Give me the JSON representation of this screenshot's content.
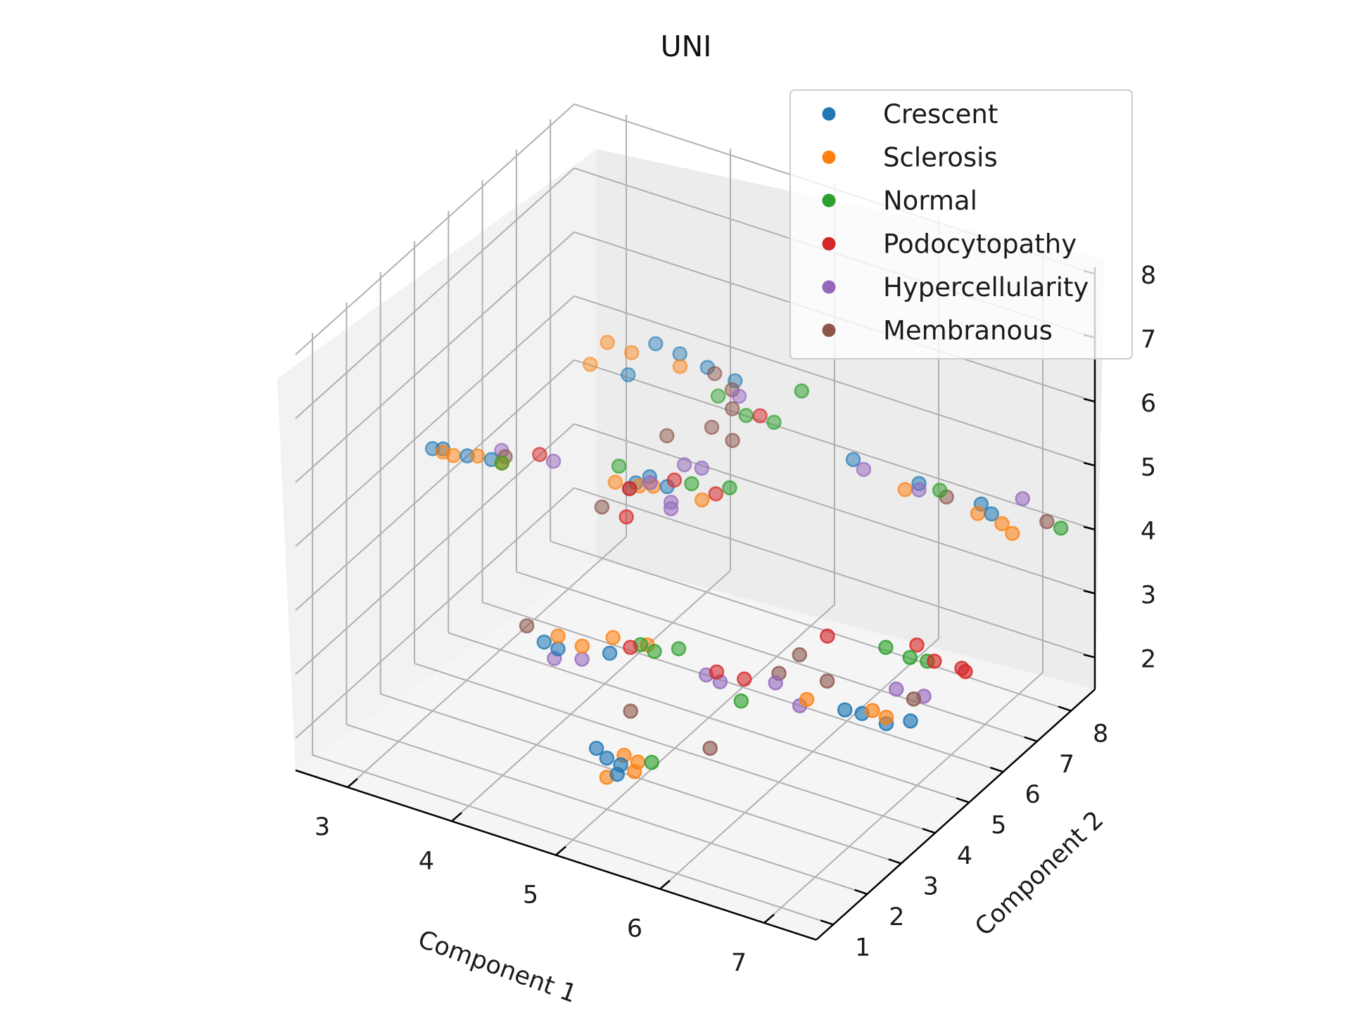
{
  "chart_data": {
    "type": "scatter",
    "projection": "3d",
    "title": "UNI",
    "xlabel": "Component 1",
    "ylabel": "Component 2",
    "zlabel": "",
    "xlim": [
      2.5,
      7.5
    ],
    "ylim": [
      0.5,
      8.7
    ],
    "zlim": [
      1.5,
      8.1
    ],
    "xticks": [
      "3",
      "4",
      "5",
      "6",
      "7"
    ],
    "yticks": [
      "1",
      "2",
      "3",
      "4",
      "5",
      "6",
      "7",
      "8"
    ],
    "zticks": [
      "2",
      "3",
      "4",
      "5",
      "6",
      "7",
      "8"
    ],
    "grid": true,
    "legend_position": "top-right",
    "series": [
      {
        "name": "Crescent",
        "color": "#1f77b4",
        "points": [
          [
            3.0,
            3.0,
            5.6
          ],
          [
            3.1,
            3.0,
            5.65
          ],
          [
            3.3,
            3.1,
            5.6
          ],
          [
            3.5,
            3.2,
            5.6
          ],
          [
            4.0,
            6.5,
            6.1
          ],
          [
            4.2,
            6.6,
            6.0
          ],
          [
            4.4,
            6.8,
            5.8
          ],
          [
            4.6,
            7.0,
            5.6
          ],
          [
            3.9,
            6.0,
            5.8
          ],
          [
            4.3,
            5.0,
            4.8
          ],
          [
            4.4,
            5.1,
            4.9
          ],
          [
            4.6,
            5.0,
            4.9
          ],
          [
            5.8,
            6.8,
            5.1
          ],
          [
            6.3,
            7.2,
            4.8
          ],
          [
            6.8,
            7.5,
            4.6
          ],
          [
            6.9,
            7.5,
            4.5
          ],
          [
            4.3,
            2.3,
            3.6
          ],
          [
            4.4,
            2.4,
            3.5
          ],
          [
            4.8,
            2.7,
            3.5
          ],
          [
            4.9,
            2.0,
            2.4
          ],
          [
            5.0,
            2.0,
            2.3
          ],
          [
            5.1,
            2.1,
            2.2
          ],
          [
            5.1,
            2.0,
            2.1
          ],
          [
            6.6,
            4.1,
            2.9
          ],
          [
            6.7,
            4.3,
            2.8
          ],
          [
            6.9,
            4.4,
            2.7
          ],
          [
            7.1,
            4.5,
            2.8
          ]
        ]
      },
      {
        "name": "Sclerosis",
        "color": "#ff7f0e",
        "points": [
          [
            3.1,
            3.0,
            5.6
          ],
          [
            3.2,
            3.0,
            5.6
          ],
          [
            3.4,
            3.1,
            5.65
          ],
          [
            3.6,
            3.2,
            5.6
          ],
          [
            3.7,
            6.0,
            6.2
          ],
          [
            3.9,
            6.1,
            6.1
          ],
          [
            4.3,
            6.3,
            6.0
          ],
          [
            3.6,
            5.8,
            5.9
          ],
          [
            4.2,
            4.7,
            4.9
          ],
          [
            4.4,
            4.8,
            4.9
          ],
          [
            4.5,
            4.9,
            4.9
          ],
          [
            5.0,
            4.8,
            5.0
          ],
          [
            6.2,
            7.1,
            4.7
          ],
          [
            6.8,
            7.4,
            4.5
          ],
          [
            7.0,
            7.5,
            4.4
          ],
          [
            7.1,
            7.5,
            4.3
          ],
          [
            4.4,
            2.4,
            3.7
          ],
          [
            4.6,
            2.5,
            3.6
          ],
          [
            4.7,
            3.1,
            3.5
          ],
          [
            4.9,
            3.5,
            3.3
          ],
          [
            5.1,
            2.2,
            2.3
          ],
          [
            5.2,
            2.3,
            2.2
          ],
          [
            5.0,
            2.0,
            2.0
          ],
          [
            5.2,
            2.2,
            2.1
          ],
          [
            6.3,
            3.9,
            3.0
          ],
          [
            6.8,
            4.3,
            2.9
          ],
          [
            6.9,
            4.4,
            2.8
          ]
        ]
      },
      {
        "name": "Normal",
        "color": "#2ca02c",
        "points": [
          [
            3.6,
            3.2,
            5.6
          ],
          [
            4.3,
            4.5,
            5.3
          ],
          [
            4.9,
            4.8,
            5.2
          ],
          [
            5.2,
            5.0,
            5.2
          ],
          [
            4.6,
            6.5,
            5.6
          ],
          [
            5.0,
            6.1,
            5.7
          ],
          [
            5.3,
            6.0,
            5.8
          ],
          [
            5.5,
            6.2,
            6.3
          ],
          [
            6.5,
            7.2,
            4.8
          ],
          [
            7.5,
            7.7,
            4.5
          ],
          [
            4.9,
            3.3,
            3.4
          ],
          [
            5.0,
            3.4,
            3.3
          ],
          [
            5.2,
            3.5,
            3.4
          ],
          [
            5.3,
            2.4,
            2.2
          ],
          [
            5.8,
            3.5,
            2.9
          ],
          [
            6.7,
            5.0,
            3.5
          ],
          [
            6.9,
            5.1,
            3.4
          ],
          [
            7.0,
            5.3,
            3.3
          ]
        ]
      },
      {
        "name": "Podocytopathy",
        "color": "#d62728",
        "points": [
          [
            3.8,
            3.7,
            5.6
          ],
          [
            4.5,
            4.2,
            5.2
          ],
          [
            4.8,
            4.6,
            5.3
          ],
          [
            5.1,
            4.9,
            5.1
          ],
          [
            4.6,
            3.8,
            5.0
          ],
          [
            5.1,
            6.2,
            5.7
          ],
          [
            4.9,
            3.0,
            3.5
          ],
          [
            5.5,
            3.7,
            3.1
          ],
          [
            5.7,
            3.9,
            3.0
          ],
          [
            6.4,
            4.2,
            3.9
          ],
          [
            6.9,
            5.3,
            3.5
          ],
          [
            7.1,
            5.2,
            3.4
          ],
          [
            7.3,
            5.4,
            3.3
          ],
          [
            7.3,
            5.5,
            3.2
          ]
        ]
      },
      {
        "name": "Hypercellularity",
        "color": "#9467bd",
        "points": [
          [
            3.5,
            3.5,
            5.6
          ],
          [
            3.9,
            3.8,
            5.5
          ],
          [
            4.6,
            4.5,
            5.2
          ],
          [
            4.8,
            4.5,
            5.0
          ],
          [
            4.8,
            4.5,
            4.9
          ],
          [
            4.9,
            6.2,
            5.9
          ],
          [
            4.7,
            5.2,
            5.2
          ],
          [
            4.9,
            5.1,
            5.3
          ],
          [
            5.9,
            6.8,
            5.0
          ],
          [
            6.3,
            7.2,
            4.7
          ],
          [
            7.1,
            7.8,
            4.7
          ],
          [
            4.3,
            2.6,
            3.2
          ],
          [
            4.5,
            2.8,
            3.2
          ],
          [
            5.4,
            3.7,
            3.0
          ],
          [
            5.5,
            3.8,
            2.9
          ],
          [
            6.0,
            3.9,
            3.1
          ],
          [
            6.2,
            4.0,
            2.8
          ],
          [
            6.8,
            5.0,
            2.9
          ],
          [
            7.0,
            5.2,
            2.8
          ]
        ]
      },
      {
        "name": "Membranous",
        "color": "#8c564b",
        "points": [
          [
            3.6,
            3.3,
            5.65
          ],
          [
            4.4,
            4.5,
            5.0
          ],
          [
            4.3,
            4.0,
            4.9
          ],
          [
            4.6,
            6.4,
            6.0
          ],
          [
            4.8,
            6.3,
            5.9
          ],
          [
            4.9,
            6.0,
            5.8
          ],
          [
            4.8,
            5.7,
            5.6
          ],
          [
            5.0,
            5.7,
            5.5
          ],
          [
            4.5,
            5.3,
            5.5
          ],
          [
            6.5,
            7.4,
            4.6
          ],
          [
            7.3,
            7.9,
            4.4
          ],
          [
            4.1,
            2.4,
            3.7
          ],
          [
            5.0,
            2.7,
            2.7
          ],
          [
            5.6,
            3.2,
            2.2
          ],
          [
            6.0,
            4.0,
            3.2
          ],
          [
            6.1,
            4.3,
            3.4
          ],
          [
            6.3,
            4.5,
            3.0
          ],
          [
            7.0,
            4.9,
            2.9
          ]
        ]
      }
    ]
  }
}
